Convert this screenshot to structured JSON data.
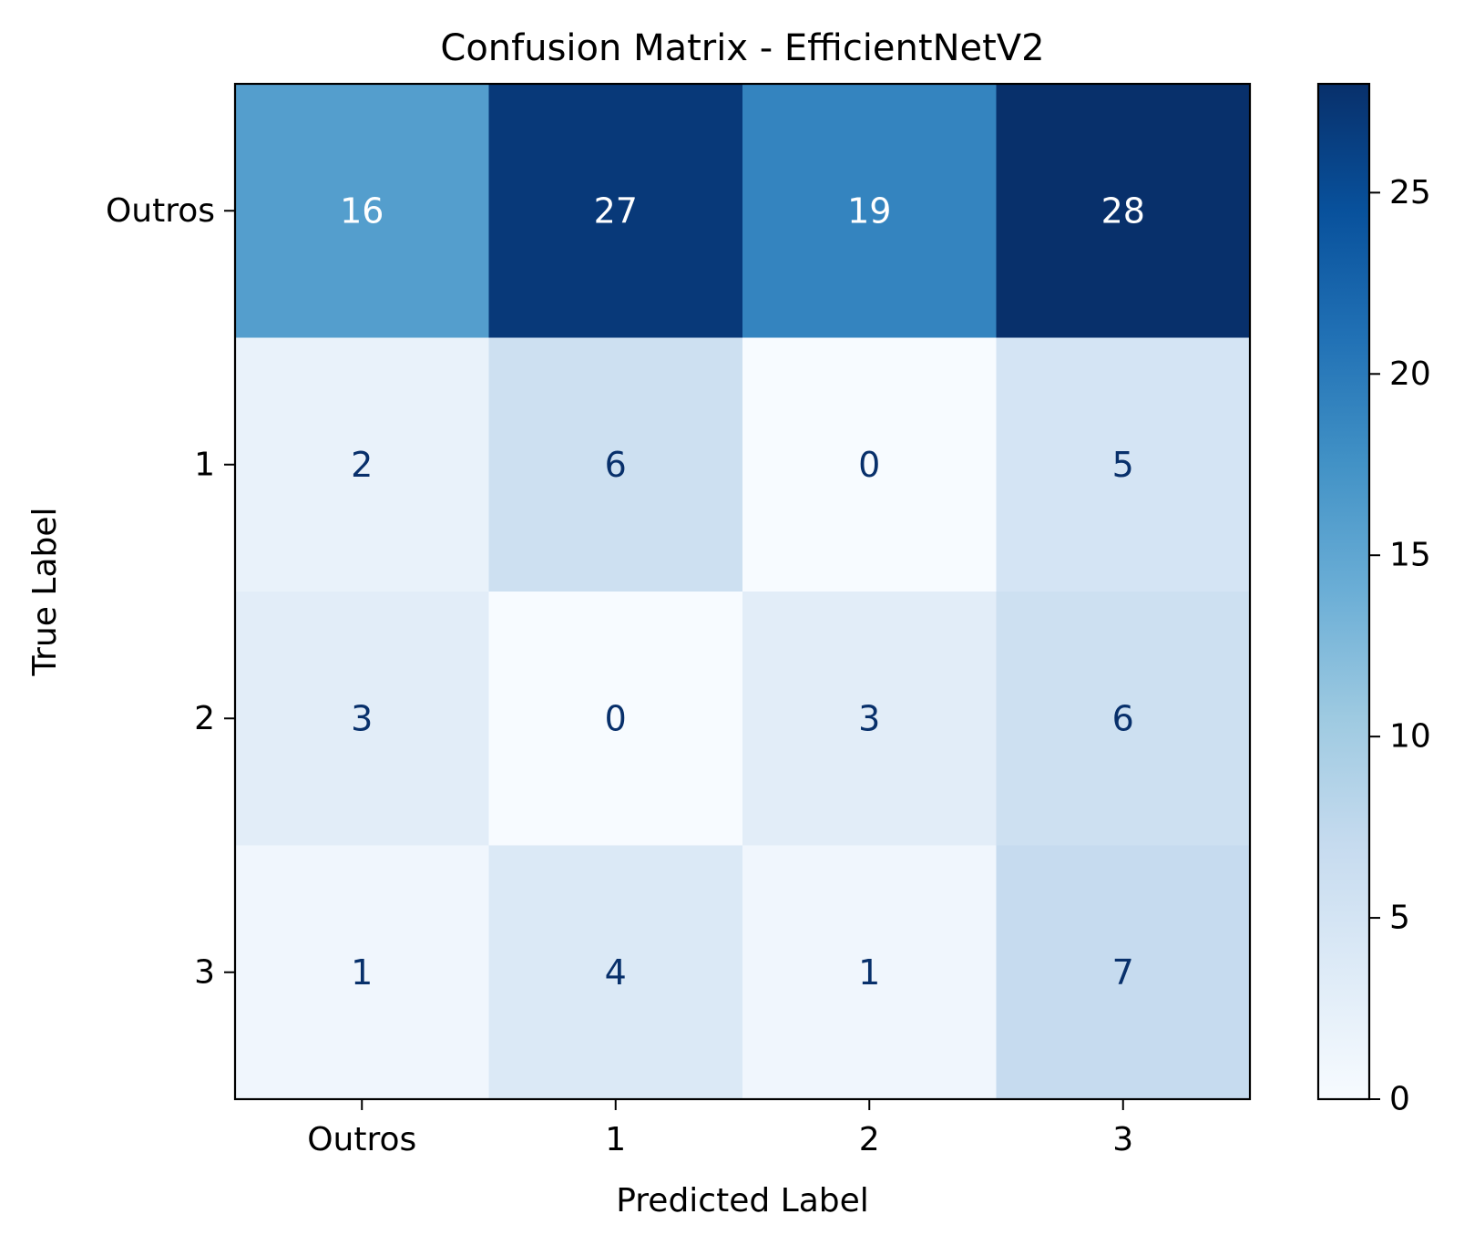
{
  "chart_data": {
    "type": "heatmap",
    "title": "Confusion Matrix - EfficientNetV2",
    "xlabel": "Predicted Label",
    "ylabel": "True Label",
    "x_categories": [
      "Outros",
      "1",
      "2",
      "3"
    ],
    "y_categories": [
      "Outros",
      "1",
      "2",
      "3"
    ],
    "values": [
      [
        16,
        27,
        19,
        28
      ],
      [
        2,
        6,
        0,
        5
      ],
      [
        3,
        0,
        3,
        6
      ],
      [
        1,
        4,
        1,
        7
      ]
    ],
    "colormap": "Blues",
    "colorbar": {
      "range": [
        0,
        28
      ],
      "ticks": [
        "0",
        "5",
        "10",
        "15",
        "20",
        "25"
      ]
    }
  }
}
